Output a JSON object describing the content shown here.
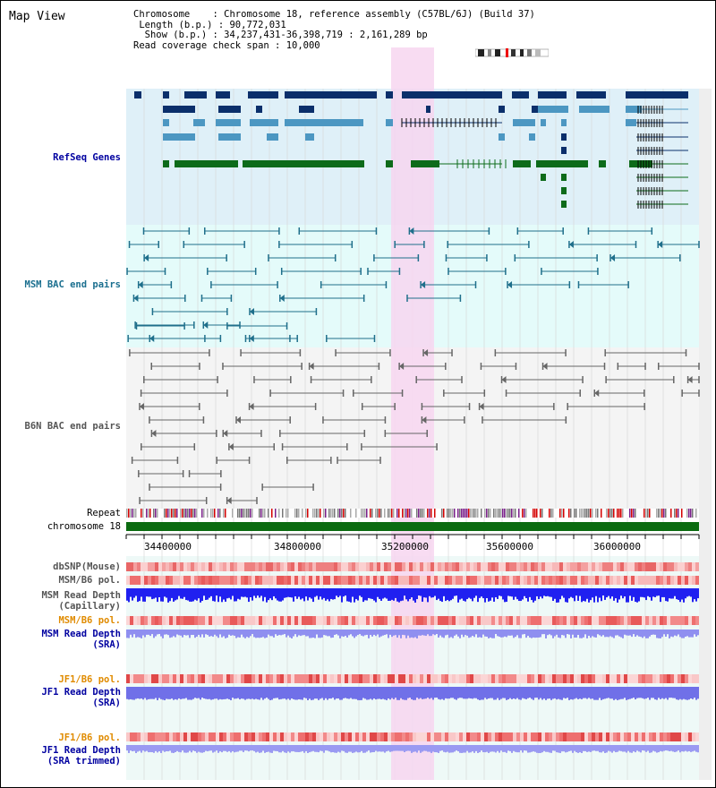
{
  "app_title": "Map View",
  "info": {
    "chromosome_label": "Chromosome",
    "chromosome_value": "Chromosome 18, reference assembly (C57BL/6J) (Build 37)",
    "length_label": "Length (b.p.)",
    "length_value": "90,772,031",
    "show_label": "Show (b.p.)",
    "show_value": "34,237,431-36,398,719 : 2,161,289 bp",
    "coverage_label": "Read coverage check span",
    "coverage_value": "10,000"
  },
  "tracks": {
    "refseq": "RefSeq Genes",
    "msm_bac": "MSM BAC end pairs",
    "b6n_bac": "B6N BAC end pairs",
    "repeat": "Repeat",
    "chromosome": "chromosome 18",
    "dbsnp": "dbSNP(Mouse)",
    "msm_b6_pol_1": "MSM/B6 pol.",
    "msm_read_depth_cap_1": "MSM Read Depth",
    "msm_read_depth_cap_2": "(Capillary)",
    "msm_b6_pol_2": "MSM/B6 pol.",
    "msm_read_depth_sra_1": "MSM Read Depth",
    "msm_read_depth_sra_2": "(SRA)",
    "jf1_b6_pol_1": "JF1/B6 pol.",
    "jf1_read_depth_sra_1": "JF1 Read Depth",
    "jf1_read_depth_sra_2": "(SRA)",
    "jf1_b6_pol_2": "JF1/B6 pol.",
    "jf1_read_depth_trim_1": "JF1 Read Depth",
    "jf1_read_depth_trim_2": "(SRA trimmed)"
  },
  "axis": {
    "ticks": [
      "34400000",
      "34800000",
      "35200000",
      "35600000",
      "36000000"
    ]
  },
  "colors": {
    "refseq_bg": "#dff0f8",
    "bac_bg": "#e4fbfa",
    "b6n_bg": "#f4f4f4",
    "highlight": "#f7d6f0",
    "dark_gene": "#0b2f6b",
    "light_gene": "#4c97c2",
    "green_gene": "#0d6b1a",
    "msm_bac": "#1f6f8b",
    "b6n_bac": "#666666",
    "chromosome_bar": "#0b6b10",
    "label_blue": "#0000a0",
    "label_teal": "#1b6f8f",
    "label_gray": "#555555",
    "label_orange": "#e08b00"
  }
}
